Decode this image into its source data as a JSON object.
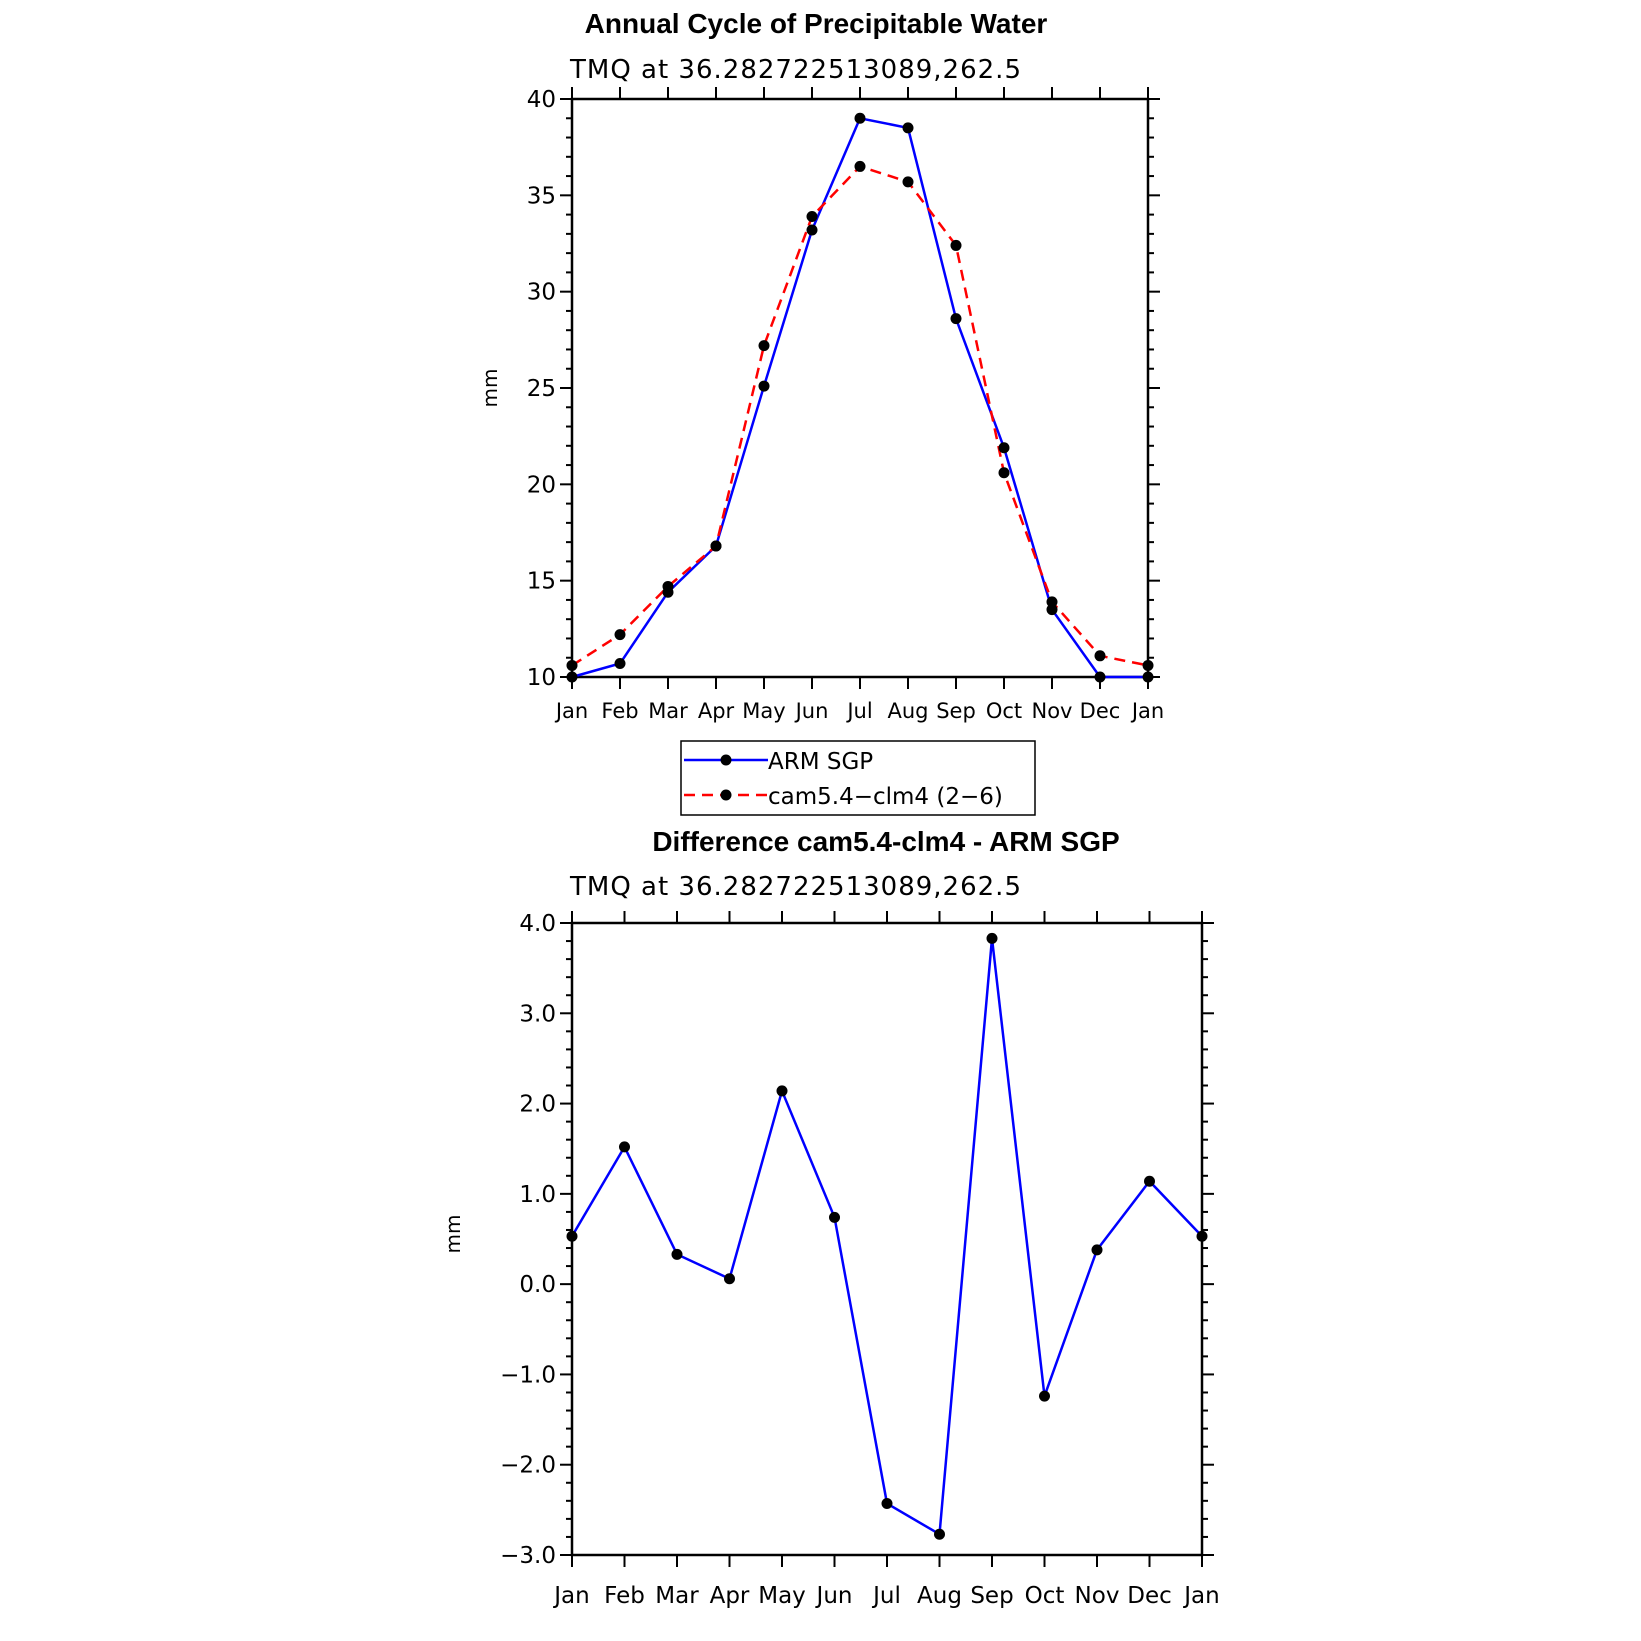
{
  "chart_data": [
    {
      "type": "line",
      "title": "Annual Cycle of Precipitable Water",
      "subtitle": "TMQ  at  36.282722513089,262.5",
      "ylabel": "mm",
      "xlabel": "",
      "ylim": [
        10,
        40
      ],
      "yticks": [
        "10",
        "15",
        "20",
        "25",
        "30",
        "35",
        "40"
      ],
      "ytick_values": [
        10,
        15,
        20,
        25,
        30,
        35,
        40
      ],
      "categories": [
        "Jan",
        "Feb",
        "Mar",
        "Apr",
        "May",
        "Jun",
        "Jul",
        "Aug",
        "Sep",
        "Oct",
        "Nov",
        "Dec",
        "Jan"
      ],
      "grid": false,
      "series": [
        {
          "name": "ARM SGP",
          "color": "#0000ff",
          "dash": "solid",
          "values": [
            10.0,
            10.7,
            14.4,
            16.8,
            25.1,
            33.2,
            39.0,
            38.5,
            28.6,
            21.9,
            13.5,
            10.0,
            10.0
          ]
        },
        {
          "name": "cam5.4−clm4 (2−6)",
          "color": "#ff0000",
          "dash": "dashed",
          "values": [
            10.6,
            12.2,
            14.7,
            16.8,
            27.2,
            33.9,
            36.5,
            35.7,
            32.4,
            20.6,
            13.9,
            11.1,
            10.6
          ]
        }
      ],
      "legend_position": "below"
    },
    {
      "type": "line",
      "title": "Difference cam5.4-clm4 - ARM SGP",
      "subtitle": "TMQ  at  36.282722513089,262.5",
      "ylabel": "mm",
      "xlabel": "",
      "ylim": [
        -3.0,
        4.0
      ],
      "yticks": [
        "−3.0",
        "−2.0",
        "−1.0",
        "0.0",
        "1.0",
        "2.0",
        "3.0",
        "4.0"
      ],
      "ytick_values": [
        -3.0,
        -2.0,
        -1.0,
        0.0,
        1.0,
        2.0,
        3.0,
        4.0
      ],
      "categories": [
        "Jan",
        "Feb",
        "Mar",
        "Apr",
        "May",
        "Jun",
        "Jul",
        "Aug",
        "Sep",
        "Oct",
        "Nov",
        "Dec",
        "Jan"
      ],
      "grid": false,
      "series": [
        {
          "color": "#0000ff",
          "dash": "solid",
          "values": [
            0.53,
            1.52,
            0.33,
            0.06,
            2.14,
            0.74,
            -2.43,
            -2.77,
            3.83,
            -1.24,
            0.38,
            1.14,
            0.53
          ]
        }
      ]
    }
  ]
}
